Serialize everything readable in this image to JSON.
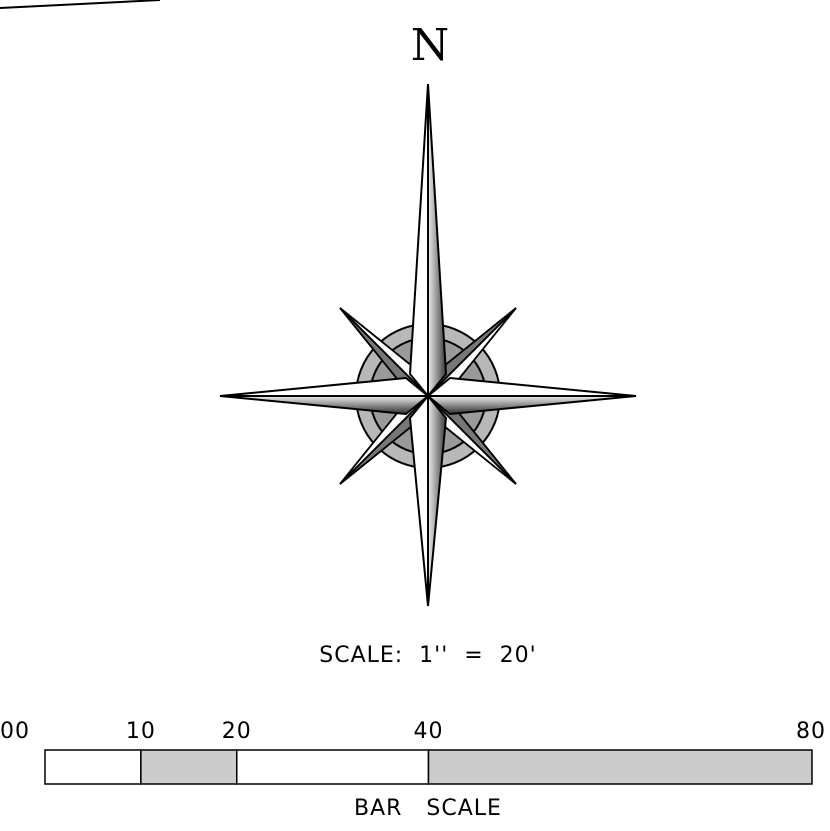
{
  "north_label": "N",
  "scale_text": "SCALE:  1''  =  20'",
  "bar_scale_label": "BAR   SCALE",
  "bar_scale": {
    "ticks": [
      "00",
      "10",
      "20",
      "40",
      "80"
    ],
    "tick_values": [
      0,
      10,
      20,
      40,
      80
    ],
    "segments": [
      {
        "from": 0,
        "to": 10,
        "fill": "#ffffff"
      },
      {
        "from": 10,
        "to": 20,
        "fill": "#cccccc"
      },
      {
        "from": 20,
        "to": 40,
        "fill": "#ffffff"
      },
      {
        "from": 40,
        "to": 80,
        "fill": "#cccccc"
      }
    ]
  },
  "colors": {
    "stroke": "#000000",
    "ring_outer": "#b8b8b8",
    "ring_inner": "#9a9a9a",
    "dark_blade": "#4a4a4a",
    "light_blade": "#ffffff"
  },
  "icons": {
    "compass": "compass-rose-icon"
  }
}
